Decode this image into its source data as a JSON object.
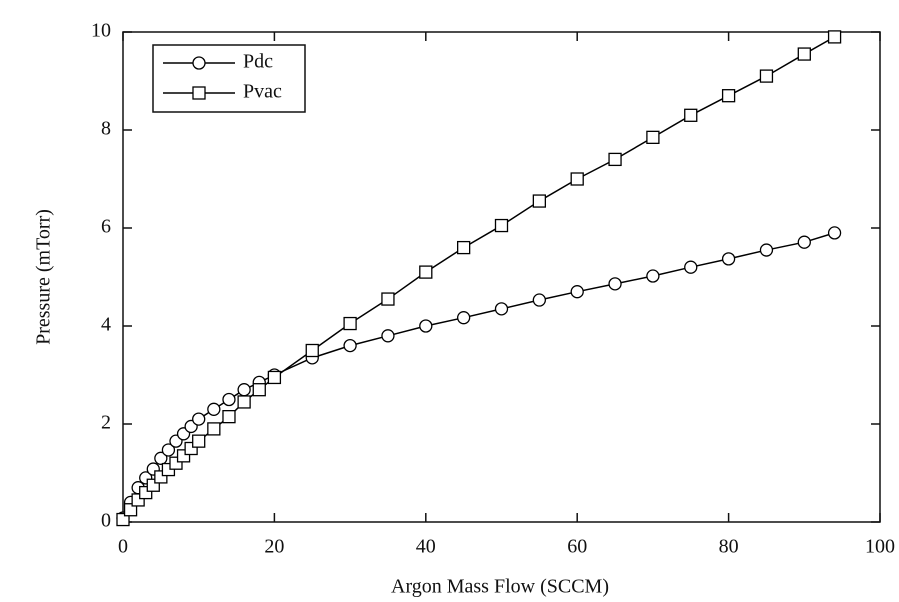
{
  "chart_data": {
    "type": "line",
    "x_label": "Argon Mass Flow (SCCM)",
    "y_label": "Pressure (mTorr)",
    "x": [
      0,
      1,
      2,
      3,
      4,
      5,
      6,
      7,
      8,
      9,
      10,
      12,
      14,
      16,
      18,
      20,
      25,
      30,
      35,
      40,
      45,
      50,
      55,
      60,
      65,
      70,
      75,
      80,
      85,
      90,
      94
    ],
    "series": [
      {
        "name": "Pdc",
        "marker": "circle",
        "color": "#000000",
        "values": [
          0.08,
          0.4,
          0.7,
          0.9,
          1.08,
          1.3,
          1.47,
          1.65,
          1.8,
          1.95,
          2.1,
          2.3,
          2.5,
          2.7,
          2.85,
          3.0,
          3.35,
          3.6,
          3.8,
          4.0,
          4.17,
          4.35,
          4.53,
          4.7,
          4.86,
          5.02,
          5.2,
          5.37,
          5.55,
          5.71,
          5.9
        ]
      },
      {
        "name": "Pvac",
        "marker": "square",
        "color": "#000000",
        "values": [
          0.05,
          0.25,
          0.45,
          0.6,
          0.75,
          0.92,
          1.07,
          1.2,
          1.35,
          1.5,
          1.65,
          1.9,
          2.15,
          2.45,
          2.7,
          2.95,
          3.5,
          4.05,
          4.55,
          5.1,
          5.6,
          6.05,
          6.55,
          7.0,
          7.4,
          7.85,
          8.3,
          8.7,
          9.1,
          9.55,
          9.9
        ]
      }
    ],
    "xlim": [
      0,
      100
    ],
    "xticks": [
      0,
      20,
      40,
      60,
      80,
      100
    ],
    "ylim": [
      0,
      10
    ],
    "yticks": [
      0,
      2,
      4,
      6,
      8,
      10
    ],
    "legend": "upper left"
  }
}
